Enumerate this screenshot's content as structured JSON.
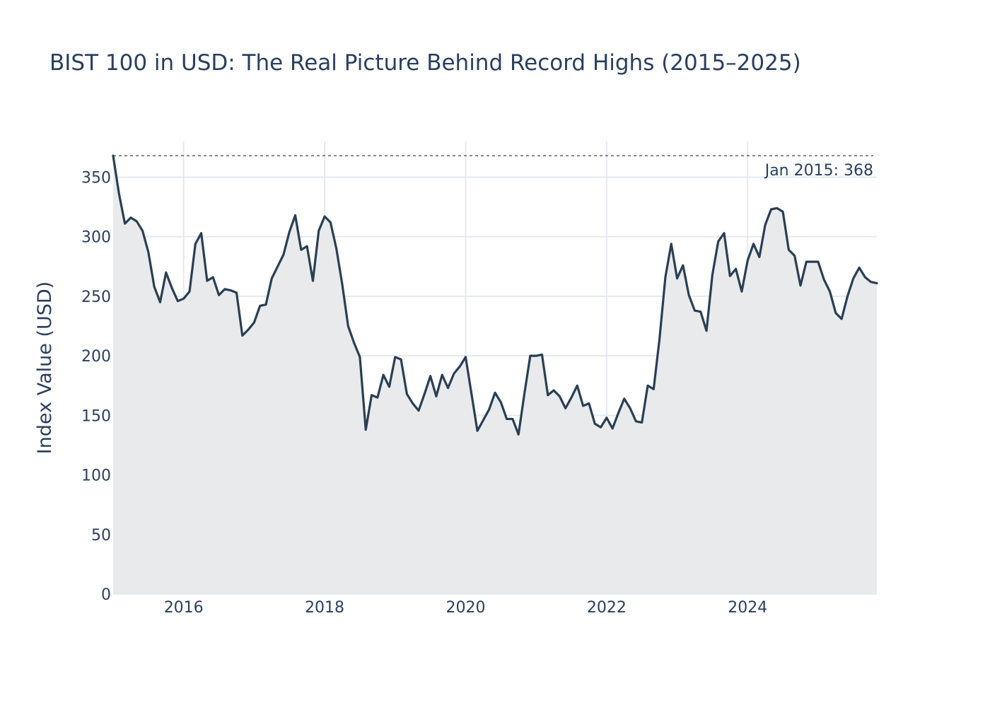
{
  "chart_data": {
    "type": "area",
    "title": "BIST 100 in USD: The Real Picture Behind Record Highs (2015–2025)",
    "xlabel": "",
    "ylabel": "Index Value (USD)",
    "x_tick_labels": [
      "2016",
      "2018",
      "2020",
      "2022",
      "2024"
    ],
    "x_ticks": [
      "2016-01",
      "2018-01",
      "2020-01",
      "2022-01",
      "2024-01"
    ],
    "xlim": [
      "2015-01",
      "2025-11"
    ],
    "y_ticks": [
      0,
      50,
      100,
      150,
      200,
      250,
      300,
      350
    ],
    "ylim": [
      0,
      380
    ],
    "grid": true,
    "legend": "none",
    "colors": {
      "line": "#2a3f54",
      "fill": "#e8eaec",
      "grid": "#e5e9f0",
      "reference_line": "#555555",
      "text": "#2a3f5f"
    },
    "reference_line": {
      "value": 368,
      "style": "dashed",
      "label": "Jan 2015: 368"
    },
    "series": [
      {
        "x": [
          "2015-01",
          "2015-02",
          "2015-03",
          "2015-04",
          "2015-05",
          "2015-06",
          "2015-07",
          "2015-08",
          "2015-09",
          "2015-10",
          "2015-11",
          "2015-12",
          "2016-01",
          "2016-02",
          "2016-03",
          "2016-04",
          "2016-05",
          "2016-06",
          "2016-07",
          "2016-08",
          "2016-09",
          "2016-10",
          "2016-11",
          "2016-12",
          "2017-01",
          "2017-02",
          "2017-03",
          "2017-04",
          "2017-05",
          "2017-06",
          "2017-07",
          "2017-08",
          "2017-09",
          "2017-10",
          "2017-11",
          "2017-12",
          "2018-01",
          "2018-02",
          "2018-03",
          "2018-04",
          "2018-05",
          "2018-06",
          "2018-07",
          "2018-08",
          "2018-09",
          "2018-10",
          "2018-11",
          "2018-12",
          "2019-01",
          "2019-02",
          "2019-03",
          "2019-04",
          "2019-05",
          "2019-06",
          "2019-07",
          "2019-08",
          "2019-09",
          "2019-10",
          "2019-11",
          "2019-12",
          "2020-01",
          "2020-02",
          "2020-03",
          "2020-04",
          "2020-05",
          "2020-06",
          "2020-07",
          "2020-08",
          "2020-09",
          "2020-10",
          "2020-11",
          "2020-12",
          "2021-01",
          "2021-02",
          "2021-03",
          "2021-04",
          "2021-05",
          "2021-06",
          "2021-07",
          "2021-08",
          "2021-09",
          "2021-10",
          "2021-11",
          "2021-12",
          "2022-01",
          "2022-02",
          "2022-03",
          "2022-04",
          "2022-05",
          "2022-06",
          "2022-07",
          "2022-08",
          "2022-09",
          "2022-10",
          "2022-11",
          "2022-12",
          "2023-01",
          "2023-02",
          "2023-03",
          "2023-04",
          "2023-05",
          "2023-06",
          "2023-07",
          "2023-08",
          "2023-09",
          "2023-10",
          "2023-11",
          "2023-12",
          "2024-01",
          "2024-02",
          "2024-03",
          "2024-04",
          "2024-05",
          "2024-06",
          "2024-07",
          "2024-08",
          "2024-09",
          "2024-10",
          "2024-11",
          "2024-12",
          "2025-01",
          "2025-02",
          "2025-03",
          "2025-04",
          "2025-05",
          "2025-06",
          "2025-07",
          "2025-08",
          "2025-09",
          "2025-10",
          "2025-11"
        ],
        "y": [
          368,
          336,
          311,
          316,
          313,
          305,
          287,
          258,
          245,
          270,
          257,
          246,
          248,
          254,
          294,
          303,
          263,
          266,
          251,
          256,
          255,
          253,
          217,
          222,
          228,
          242,
          243,
          265,
          275,
          285,
          304,
          318,
          289,
          292,
          263,
          305,
          317,
          312,
          290,
          260,
          225,
          211,
          199,
          138,
          167,
          165,
          184,
          174,
          199,
          197,
          168,
          160,
          154,
          168,
          183,
          166,
          184,
          173,
          185,
          191,
          199,
          168,
          137,
          146,
          155,
          169,
          161,
          147,
          147,
          134,
          168,
          200,
          200,
          201,
          167,
          171,
          166,
          156,
          165,
          175,
          158,
          160,
          143,
          140,
          148,
          139,
          152,
          164,
          156,
          145,
          144,
          175,
          172,
          214,
          266,
          294,
          265,
          276,
          251,
          238,
          237,
          221,
          268,
          296,
          303,
          267,
          273,
          254,
          280,
          294,
          283,
          310,
          323,
          324,
          321,
          289,
          284,
          259,
          279,
          279,
          279,
          264,
          254,
          236,
          231,
          250,
          265,
          274,
          266,
          262,
          261
        ]
      }
    ]
  }
}
